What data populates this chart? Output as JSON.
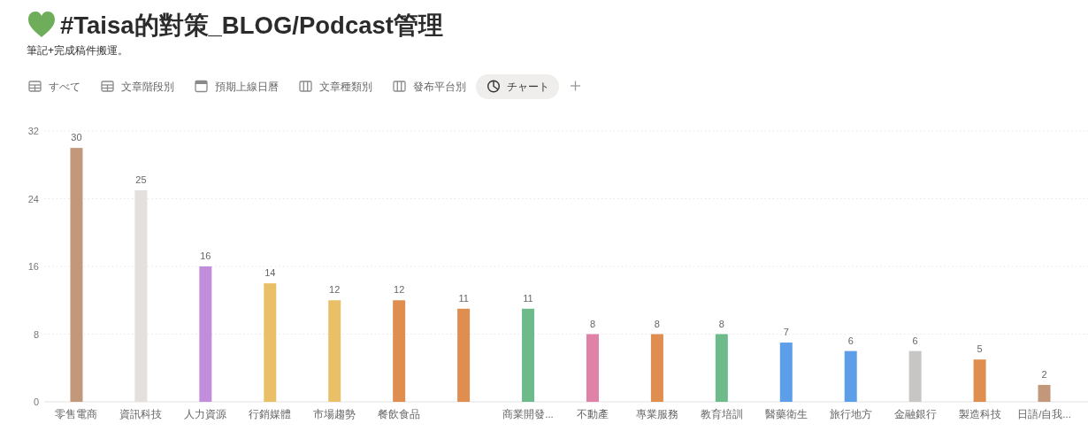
{
  "chart_data": {
    "type": "bar",
    "title": "#Taisa的對策_BLOG/Podcast管理",
    "subtitle": "筆記+完成稿件搬運。",
    "annotations": [
      "すべて",
      "文章階段別",
      "預期上線日曆",
      "文章種類別",
      "發布平台別",
      "チャート"
    ],
    "categories": [
      "零售電商",
      "資訊科技",
      "人力資源",
      "行銷媒體",
      "市場趨勢",
      "餐飲食品",
      null,
      "商業開發...",
      "不動產",
      "專業服務",
      "教育培訓",
      "醫藥衛生",
      "旅行地方",
      "金融銀行",
      "製造科技",
      "日語/自我..."
    ],
    "values": [
      30,
      25,
      16,
      14,
      12,
      12,
      11,
      11,
      8,
      8,
      8,
      7,
      6,
      6,
      5,
      2
    ],
    "colors": [
      "#c2977a",
      "#e3e0dd",
      "#c28ddb",
      "#e9c068",
      "#e9c068",
      "#e08e50",
      "#e08e50",
      "#6dbb8b",
      "#e082a8",
      "#e08e50",
      "#6dbb8b",
      "#5c9ee8",
      "#5c9ee8",
      "#c7c6c4",
      "#e08e50",
      "#c2977a"
    ],
    "ylim": [
      0,
      32
    ],
    "yticks": [
      0,
      8,
      16,
      24,
      32
    ],
    "grid": "y",
    "data_labels": true
  }
}
